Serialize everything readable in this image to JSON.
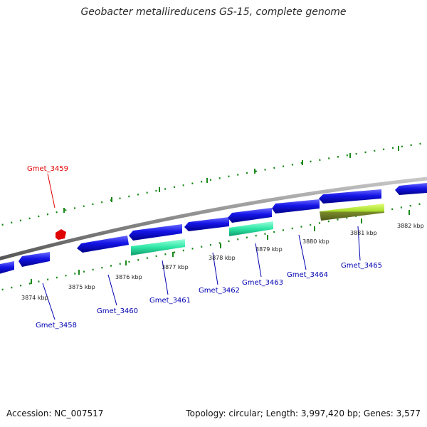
{
  "title": "Geobacter metallireducens GS-15, complete genome",
  "footer": {
    "accession": "Accession: NC_007517",
    "summary": "Topology: circular; Length: 3,997,420 bp; Genes: 3,577"
  },
  "scale_labels": [
    "3874 kbp",
    "3875 kbp",
    "3876 kbp",
    "3877 kbp",
    "3878 kbp",
    "3879 kbp",
    "3880 kbp",
    "3881 kbp",
    "3882 kbp"
  ],
  "gene_labels": [
    {
      "name": "Gmet_3459",
      "color": "#e00000"
    },
    {
      "name": "Gmet_3458",
      "color": "#0000b0"
    },
    {
      "name": "Gmet_3460",
      "color": "#0000b0"
    },
    {
      "name": "Gmet_3461",
      "color": "#0000b0"
    },
    {
      "name": "Gmet_3462",
      "color": "#0000b0"
    },
    {
      "name": "Gmet_3463",
      "color": "#0000b0"
    },
    {
      "name": "Gmet_3464",
      "color": "#0000b0"
    },
    {
      "name": "Gmet_3465",
      "color": "#0000b0"
    }
  ],
  "colors": {
    "cds": "#1010e0",
    "rna": "#30e8a8",
    "highlight": "#a8e030",
    "marker": "#e00000",
    "backbone": "#8a8a8a",
    "ticks": "#1a8a1a"
  }
}
